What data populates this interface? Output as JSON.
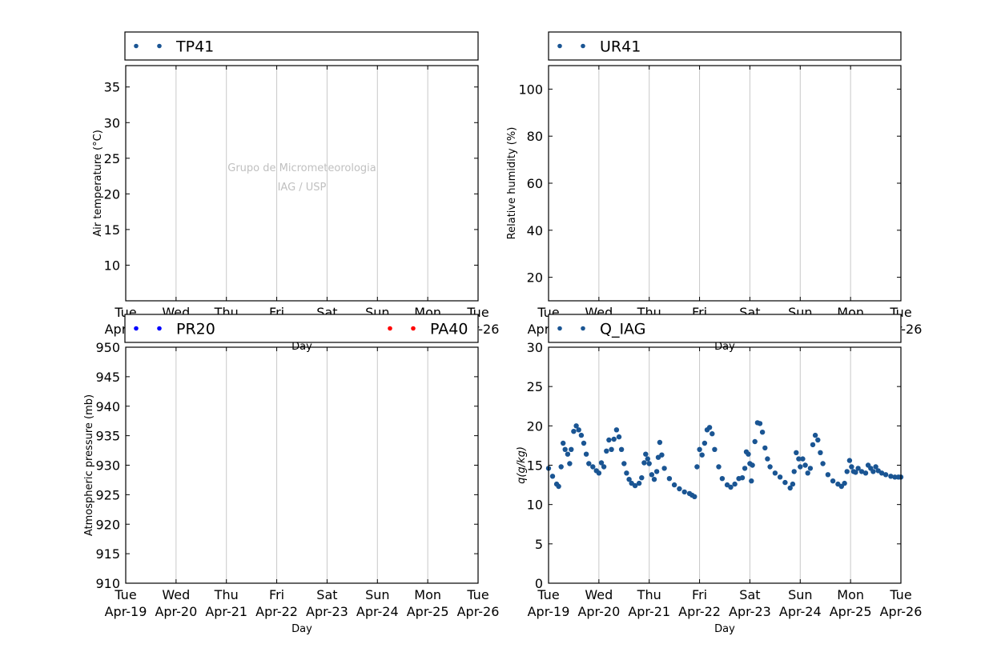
{
  "watermark": {
    "line1": "Grupo de Micrometeorologia",
    "line2": "IAG / USP"
  },
  "chart_data": [
    {
      "type": "scatter",
      "id": "tp",
      "ylabel": "Air temperature (°C)",
      "xlabel": "Day",
      "ylim": [
        5,
        38
      ],
      "yticks": [
        10,
        15,
        20,
        25,
        30,
        35
      ],
      "legend": [
        {
          "name": "TP41",
          "color": "#1a5593"
        }
      ],
      "series": [
        {
          "name": "TP41",
          "color": "#1a5593",
          "points": []
        }
      ]
    },
    {
      "type": "scatter",
      "id": "ur",
      "ylabel": "Relative humidity (%)",
      "xlabel": "Day",
      "ylim": [
        10,
        110
      ],
      "yticks": [
        20,
        40,
        60,
        80,
        100
      ],
      "legend": [
        {
          "name": "UR41",
          "color": "#1a5593"
        }
      ],
      "series": [
        {
          "name": "UR41",
          "color": "#1a5593",
          "points": []
        }
      ]
    },
    {
      "type": "scatter",
      "id": "pr",
      "ylabel": "Atmospheric pressure (mb)",
      "xlabel": "Day",
      "ylim": [
        910,
        950
      ],
      "yticks": [
        910,
        915,
        920,
        925,
        930,
        935,
        940,
        945,
        950
      ],
      "legend": [
        {
          "name": "PR20",
          "color": "#0000ff"
        },
        {
          "name": "PA40",
          "color": "#ff0000"
        }
      ],
      "series": [
        {
          "name": "PR20",
          "color": "#0000ff",
          "points": []
        },
        {
          "name": "PA40",
          "color": "#ff0000",
          "points": []
        }
      ]
    },
    {
      "type": "scatter",
      "id": "q",
      "ylabel": "q(g/kg)",
      "xlabel": "Day",
      "ylim": [
        0,
        30
      ],
      "yticks": [
        0,
        5,
        10,
        15,
        20,
        25,
        30
      ],
      "legend": [
        {
          "name": "Q_IAG",
          "color": "#1a5593"
        }
      ],
      "series": [
        {
          "name": "Q_IAG",
          "color": "#1a5593",
          "points": [
            [
              0.0,
              14.6
            ],
            [
              0.08,
              13.6
            ],
            [
              0.16,
              12.6
            ],
            [
              0.2,
              12.3
            ],
            [
              0.25,
              14.8
            ],
            [
              0.29,
              17.8
            ],
            [
              0.33,
              17.0
            ],
            [
              0.38,
              16.4
            ],
            [
              0.42,
              15.2
            ],
            [
              0.45,
              17.0
            ],
            [
              0.5,
              19.3
            ],
            [
              0.55,
              20.0
            ],
            [
              0.6,
              19.5
            ],
            [
              0.65,
              18.8
            ],
            [
              0.7,
              17.8
            ],
            [
              0.75,
              16.4
            ],
            [
              0.8,
              15.2
            ],
            [
              0.88,
              14.8
            ],
            [
              0.95,
              14.3
            ],
            [
              1.0,
              14.0
            ],
            [
              1.05,
              15.3
            ],
            [
              1.1,
              14.8
            ],
            [
              1.15,
              16.8
            ],
            [
              1.2,
              18.2
            ],
            [
              1.25,
              17.0
            ],
            [
              1.3,
              18.3
            ],
            [
              1.35,
              19.5
            ],
            [
              1.4,
              18.6
            ],
            [
              1.45,
              17.0
            ],
            [
              1.5,
              15.2
            ],
            [
              1.55,
              14.0
            ],
            [
              1.6,
              13.2
            ],
            [
              1.65,
              12.7
            ],
            [
              1.72,
              12.4
            ],
            [
              1.8,
              12.7
            ],
            [
              1.85,
              13.4
            ],
            [
              1.9,
              15.3
            ],
            [
              1.93,
              16.4
            ],
            [
              1.97,
              15.8
            ],
            [
              2.0,
              15.2
            ],
            [
              2.05,
              13.8
            ],
            [
              2.1,
              13.2
            ],
            [
              2.15,
              14.2
            ],
            [
              2.18,
              16.0
            ],
            [
              2.21,
              17.9
            ],
            [
              2.25,
              16.3
            ],
            [
              2.3,
              14.6
            ],
            [
              2.4,
              13.3
            ],
            [
              2.5,
              12.5
            ],
            [
              2.6,
              12.0
            ],
            [
              2.7,
              11.6
            ],
            [
              2.8,
              11.4
            ],
            [
              2.85,
              11.2
            ],
            [
              2.9,
              11.0
            ],
            [
              2.95,
              14.8
            ],
            [
              3.0,
              17.0
            ],
            [
              3.05,
              16.3
            ],
            [
              3.1,
              17.8
            ],
            [
              3.15,
              19.5
            ],
            [
              3.2,
              19.8
            ],
            [
              3.25,
              19.0
            ],
            [
              3.3,
              17.0
            ],
            [
              3.38,
              14.8
            ],
            [
              3.45,
              13.3
            ],
            [
              3.55,
              12.5
            ],
            [
              3.62,
              12.2
            ],
            [
              3.7,
              12.6
            ],
            [
              3.78,
              13.3
            ],
            [
              3.85,
              13.4
            ],
            [
              3.9,
              14.6
            ],
            [
              3.93,
              16.7
            ],
            [
              3.97,
              16.4
            ],
            [
              4.0,
              15.2
            ],
            [
              4.03,
              13.0
            ],
            [
              4.05,
              15.0
            ],
            [
              4.1,
              18.0
            ],
            [
              4.15,
              20.4
            ],
            [
              4.2,
              20.3
            ],
            [
              4.25,
              19.2
            ],
            [
              4.3,
              17.2
            ],
            [
              4.35,
              15.8
            ],
            [
              4.4,
              14.8
            ],
            [
              4.5,
              14.0
            ],
            [
              4.6,
              13.5
            ],
            [
              4.7,
              12.8
            ],
            [
              4.8,
              12.1
            ],
            [
              4.85,
              12.6
            ],
            [
              4.88,
              14.2
            ],
            [
              4.92,
              16.6
            ],
            [
              4.97,
              15.8
            ],
            [
              5.0,
              14.8
            ],
            [
              5.05,
              15.8
            ],
            [
              5.1,
              15.0
            ],
            [
              5.15,
              14.0
            ],
            [
              5.2,
              14.6
            ],
            [
              5.25,
              17.6
            ],
            [
              5.3,
              18.8
            ],
            [
              5.35,
              18.2
            ],
            [
              5.4,
              16.6
            ],
            [
              5.45,
              15.2
            ],
            [
              5.55,
              13.8
            ],
            [
              5.65,
              13.0
            ],
            [
              5.75,
              12.6
            ],
            [
              5.82,
              12.3
            ],
            [
              5.88,
              12.7
            ],
            [
              5.93,
              14.2
            ],
            [
              5.98,
              15.6
            ],
            [
              6.02,
              14.8
            ],
            [
              6.06,
              14.2
            ],
            [
              6.1,
              14.1
            ],
            [
              6.15,
              14.6
            ],
            [
              6.22,
              14.2
            ],
            [
              6.3,
              14.0
            ],
            [
              6.35,
              15.0
            ],
            [
              6.4,
              14.6
            ],
            [
              6.45,
              14.2
            ],
            [
              6.5,
              14.8
            ],
            [
              6.55,
              14.3
            ],
            [
              6.62,
              14.0
            ],
            [
              6.7,
              13.8
            ],
            [
              6.8,
              13.6
            ],
            [
              6.88,
              13.5
            ],
            [
              6.95,
              13.5
            ],
            [
              7.0,
              13.5
            ]
          ]
        }
      ]
    }
  ],
  "x_axis": {
    "days": [
      "Tue",
      "Wed",
      "Thu",
      "Fri",
      "Sat",
      "Sun",
      "Mon",
      "Tue"
    ],
    "dates": [
      "Apr-19",
      "Apr-20",
      "Apr-21",
      "Apr-22",
      "Apr-23",
      "Apr-24",
      "Apr-25",
      "Apr-26"
    ]
  }
}
